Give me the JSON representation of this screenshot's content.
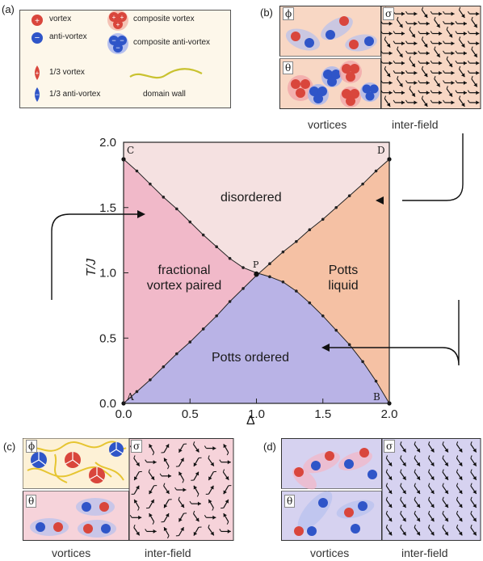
{
  "legend": {
    "panel_label": "(a)",
    "vortex": "vortex",
    "anti_vortex": "anti-vortex",
    "composite_vortex": "composite vortex",
    "composite_anti_vortex": "composite anti-vortex",
    "third_vortex": "1/3 vortex",
    "third_anti_vortex": "1/3 anti-vortex",
    "domain_wall": "domain wall"
  },
  "panel_b": {
    "label": "(b)",
    "phi": "ϕ",
    "theta": "θ",
    "sigma": "σ",
    "caption_left": "vortices",
    "caption_right": "inter-field"
  },
  "panel_c": {
    "label": "(c)",
    "phi": "ϕ",
    "theta": "θ",
    "sigma": "σ",
    "caption_left": "vortices",
    "caption_right": "inter-field"
  },
  "panel_d": {
    "label": "(d)",
    "phi": "ϕ",
    "theta": "θ",
    "sigma": "σ",
    "caption_left": "vortices",
    "caption_right": "inter-field"
  },
  "colors": {
    "disordered": "#f5e1e1",
    "fractional": "#f1b9c9",
    "potts_liquid": "#f5c1a4",
    "potts_ordered": "#b9b3e6",
    "vortex_red": "#d9463c",
    "anti_blue": "#2f55c8",
    "peach_bg": "#f8d7c4",
    "pink_bg": "#f6d3da",
    "lavender_bg": "#d6d2f0"
  },
  "chart_data": {
    "type": "phase_diagram",
    "xlabel": "Δ",
    "ylabel": "T/J",
    "xlim": [
      0,
      2
    ],
    "ylim": [
      0,
      2
    ],
    "xticks": [
      "0.0",
      "0.5",
      "1.0",
      "1.5",
      "2.0"
    ],
    "yticks": [
      "0.0",
      "0.5",
      "1.0",
      "1.5",
      "2.0"
    ],
    "regions": [
      "disordered",
      "fractional\nvortex paired",
      "Potts\nliquid",
      "Potts ordered"
    ],
    "points": [
      "A",
      "B",
      "C",
      "D",
      "P"
    ],
    "boundary_AD": [
      [
        0.1,
        0.09
      ],
      [
        0.2,
        0.18
      ],
      [
        0.3,
        0.28
      ],
      [
        0.4,
        0.38
      ],
      [
        0.5,
        0.47
      ],
      [
        0.6,
        0.57
      ],
      [
        0.7,
        0.67
      ],
      [
        0.8,
        0.78
      ],
      [
        0.9,
        0.88
      ],
      [
        1.0,
        0.98
      ],
      [
        1.1,
        1.07
      ],
      [
        1.2,
        1.16
      ],
      [
        1.3,
        1.24
      ],
      [
        1.4,
        1.33
      ],
      [
        1.5,
        1.41
      ],
      [
        1.6,
        1.5
      ],
      [
        1.7,
        1.59
      ],
      [
        1.8,
        1.68
      ],
      [
        1.9,
        1.78
      ],
      [
        2.0,
        1.87
      ]
    ],
    "boundary_CB": [
      [
        0.0,
        1.87
      ],
      [
        0.1,
        1.78
      ],
      [
        0.2,
        1.68
      ],
      [
        0.3,
        1.58
      ],
      [
        0.4,
        1.49
      ],
      [
        0.5,
        1.39
      ],
      [
        0.6,
        1.29
      ],
      [
        0.7,
        1.2
      ],
      [
        0.8,
        1.11
      ],
      [
        0.9,
        1.04
      ],
      [
        1.0,
        1.0
      ],
      [
        1.1,
        0.97
      ],
      [
        1.2,
        0.93
      ],
      [
        1.3,
        0.86
      ],
      [
        1.4,
        0.77
      ],
      [
        1.5,
        0.67
      ],
      [
        1.6,
        0.56
      ],
      [
        1.7,
        0.45
      ],
      [
        1.8,
        0.32
      ],
      [
        1.9,
        0.17
      ],
      [
        2.0,
        0.0
      ]
    ]
  }
}
